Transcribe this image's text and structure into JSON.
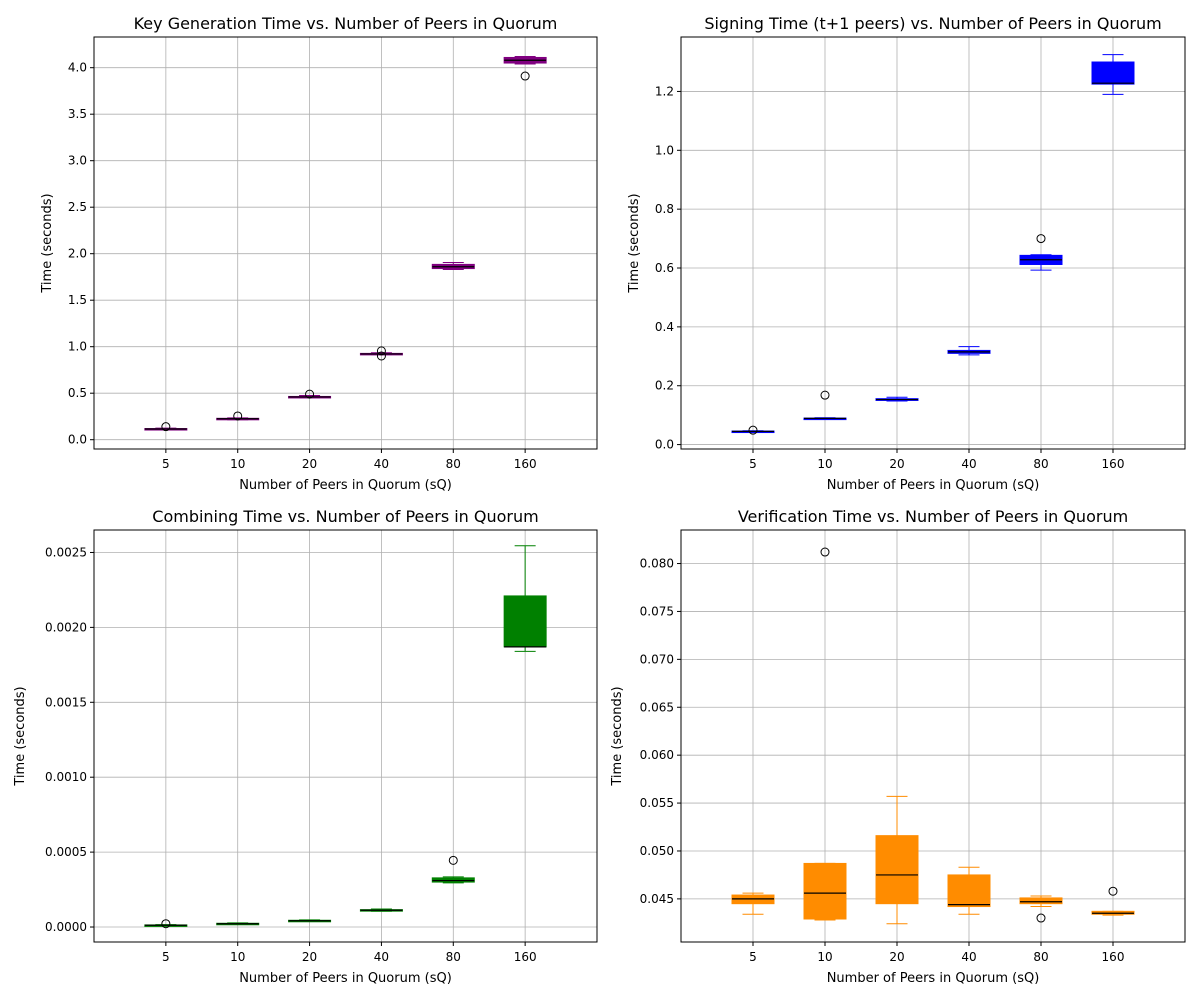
{
  "chart_data": [
    {
      "type": "box",
      "title": "Key Generation Time vs. Number of Peers in Quorum",
      "xlabel": "Number of Peers in Quorum (sQ)",
      "ylabel": "Time (seconds)",
      "categories": [
        "5",
        "10",
        "20",
        "40",
        "80",
        "160"
      ],
      "ylim": [
        -0.1,
        4.33
      ],
      "yticks": [
        0.0,
        0.5,
        1.0,
        1.5,
        2.0,
        2.5,
        3.0,
        3.5,
        4.0
      ],
      "ytick_labels": [
        "0.0",
        "0.5",
        "1.0",
        "1.5",
        "2.0",
        "2.5",
        "3.0",
        "3.5",
        "4.0"
      ],
      "grid": true,
      "box_color": "#800080",
      "whisker_color": "#800080",
      "median_color": "#000000",
      "boxes": [
        {
          "whislo": 0.105,
          "q1": 0.11,
          "med": 0.115,
          "q3": 0.12,
          "whishi": 0.125,
          "fliers": [
            0.14
          ]
        },
        {
          "whislo": 0.215,
          "q1": 0.22,
          "med": 0.225,
          "q3": 0.23,
          "whishi": 0.235,
          "fliers": [
            0.255
          ]
        },
        {
          "whislo": 0.45,
          "q1": 0.455,
          "med": 0.46,
          "q3": 0.465,
          "whishi": 0.475,
          "fliers": [
            0.49
          ]
        },
        {
          "whislo": 0.915,
          "q1": 0.918,
          "med": 0.922,
          "q3": 0.928,
          "whishi": 0.935,
          "fliers": [
            0.9,
            0.955
          ]
        },
        {
          "whislo": 1.83,
          "q1": 1.84,
          "med": 1.86,
          "q3": 1.885,
          "whishi": 1.905,
          "fliers": []
        },
        {
          "whislo": 4.04,
          "q1": 4.05,
          "med": 4.08,
          "q3": 4.11,
          "whishi": 4.12,
          "fliers": [
            3.91
          ]
        }
      ]
    },
    {
      "type": "box",
      "title": "Signing Time (t+1 peers) vs. Number of Peers in Quorum",
      "xlabel": "Number of Peers in Quorum (sQ)",
      "ylabel": "Time (seconds)",
      "categories": [
        "5",
        "10",
        "20",
        "40",
        "80",
        "160"
      ],
      "ylim": [
        -0.015,
        1.385
      ],
      "yticks": [
        0.0,
        0.2,
        0.4,
        0.6,
        0.8,
        1.0,
        1.2
      ],
      "ytick_labels": [
        "0.0",
        "0.2",
        "0.4",
        "0.6",
        "0.8",
        "1.0",
        "1.2"
      ],
      "grid": true,
      "box_color": "#0000ff",
      "whisker_color": "#0000ff",
      "median_color": "#000000",
      "boxes": [
        {
          "whislo": 0.042,
          "q1": 0.043,
          "med": 0.045,
          "q3": 0.046,
          "whishi": 0.047,
          "fliers": [
            0.049
          ]
        },
        {
          "whislo": 0.086,
          "q1": 0.088,
          "med": 0.089,
          "q3": 0.09,
          "whishi": 0.091,
          "fliers": [
            0.168
          ]
        },
        {
          "whislo": 0.148,
          "q1": 0.15,
          "med": 0.153,
          "q3": 0.156,
          "whishi": 0.161,
          "fliers": []
        },
        {
          "whislo": 0.305,
          "q1": 0.31,
          "med": 0.315,
          "q3": 0.32,
          "whishi": 0.333,
          "fliers": []
        },
        {
          "whislo": 0.593,
          "q1": 0.612,
          "med": 0.628,
          "q3": 0.643,
          "whishi": 0.645,
          "fliers": [
            0.7
          ]
        },
        {
          "whislo": 1.19,
          "q1": 1.225,
          "med": 1.228,
          "q3": 1.3,
          "whishi": 1.325,
          "fliers": []
        }
      ]
    },
    {
      "type": "box",
      "title": "Combining Time vs. Number of Peers in Quorum",
      "xlabel": "Number of Peers in Quorum (sQ)",
      "ylabel": "Time (seconds)",
      "categories": [
        "5",
        "10",
        "20",
        "40",
        "80",
        "160"
      ],
      "ylim": [
        -0.0001,
        0.00265
      ],
      "yticks": [
        0.0,
        0.0005,
        0.001,
        0.0015,
        0.002,
        0.0025
      ],
      "ytick_labels": [
        "0.0000",
        "0.0005",
        "0.0010",
        "0.0015",
        "0.0020",
        "0.0025"
      ],
      "grid": true,
      "box_color": "#008000",
      "whisker_color": "#008000",
      "median_color": "#000000",
      "boxes": [
        {
          "whislo": 8e-06,
          "q1": 1e-05,
          "med": 1.2e-05,
          "q3": 1.4e-05,
          "whishi": 1.6e-05,
          "fliers": [
            2.2e-05
          ]
        },
        {
          "whislo": 1.8e-05,
          "q1": 2e-05,
          "med": 2.2e-05,
          "q3": 2.5e-05,
          "whishi": 2.8e-05,
          "fliers": []
        },
        {
          "whislo": 3.8e-05,
          "q1": 4e-05,
          "med": 4.2e-05,
          "q3": 4.5e-05,
          "whishi": 4.8e-05,
          "fliers": []
        },
        {
          "whislo": 0.000105,
          "q1": 0.000108,
          "med": 0.000112,
          "q3": 0.000116,
          "whishi": 0.00012,
          "fliers": []
        },
        {
          "whislo": 0.000295,
          "q1": 0.0003,
          "med": 0.00031,
          "q3": 0.000328,
          "whishi": 0.000335,
          "fliers": [
            0.000445
          ]
        },
        {
          "whislo": 0.00184,
          "q1": 0.00187,
          "med": 0.00187,
          "q3": 0.00221,
          "whishi": 0.002545,
          "fliers": []
        }
      ]
    },
    {
      "type": "box",
      "title": "Verification Time vs. Number of Peers in Quorum",
      "xlabel": "Number of Peers in Quorum (sQ)",
      "ylabel": "Time (seconds)",
      "categories": [
        "5",
        "10",
        "20",
        "40",
        "80",
        "160"
      ],
      "ylim": [
        0.0405,
        0.0835
      ],
      "yticks": [
        0.045,
        0.05,
        0.055,
        0.06,
        0.065,
        0.07,
        0.075,
        0.08
      ],
      "ytick_labels": [
        "0.045",
        "0.050",
        "0.055",
        "0.060",
        "0.065",
        "0.070",
        "0.075",
        "0.080"
      ],
      "grid": true,
      "box_color": "#ff8c00",
      "whisker_color": "#ff8c00",
      "median_color": "#000000",
      "boxes": [
        {
          "whislo": 0.0434,
          "q1": 0.0445,
          "med": 0.045,
          "q3": 0.0454,
          "whishi": 0.0456,
          "fliers": []
        },
        {
          "whislo": 0.0428,
          "q1": 0.0429,
          "med": 0.0456,
          "q3": 0.0487,
          "whishi": 0.0487,
          "fliers": [
            0.0812
          ]
        },
        {
          "whislo": 0.0424,
          "q1": 0.0445,
          "med": 0.0475,
          "q3": 0.0516,
          "whishi": 0.0557,
          "fliers": []
        },
        {
          "whislo": 0.0434,
          "q1": 0.0442,
          "med": 0.0444,
          "q3": 0.0475,
          "whishi": 0.0483,
          "fliers": []
        },
        {
          "whislo": 0.0442,
          "q1": 0.0445,
          "med": 0.0447,
          "q3": 0.0451,
          "whishi": 0.0453,
          "fliers": [
            0.043
          ]
        },
        {
          "whislo": 0.0433,
          "q1": 0.0434,
          "med": 0.0435,
          "q3": 0.0437,
          "whishi": 0.0437,
          "fliers": [
            0.0458
          ]
        }
      ]
    }
  ]
}
